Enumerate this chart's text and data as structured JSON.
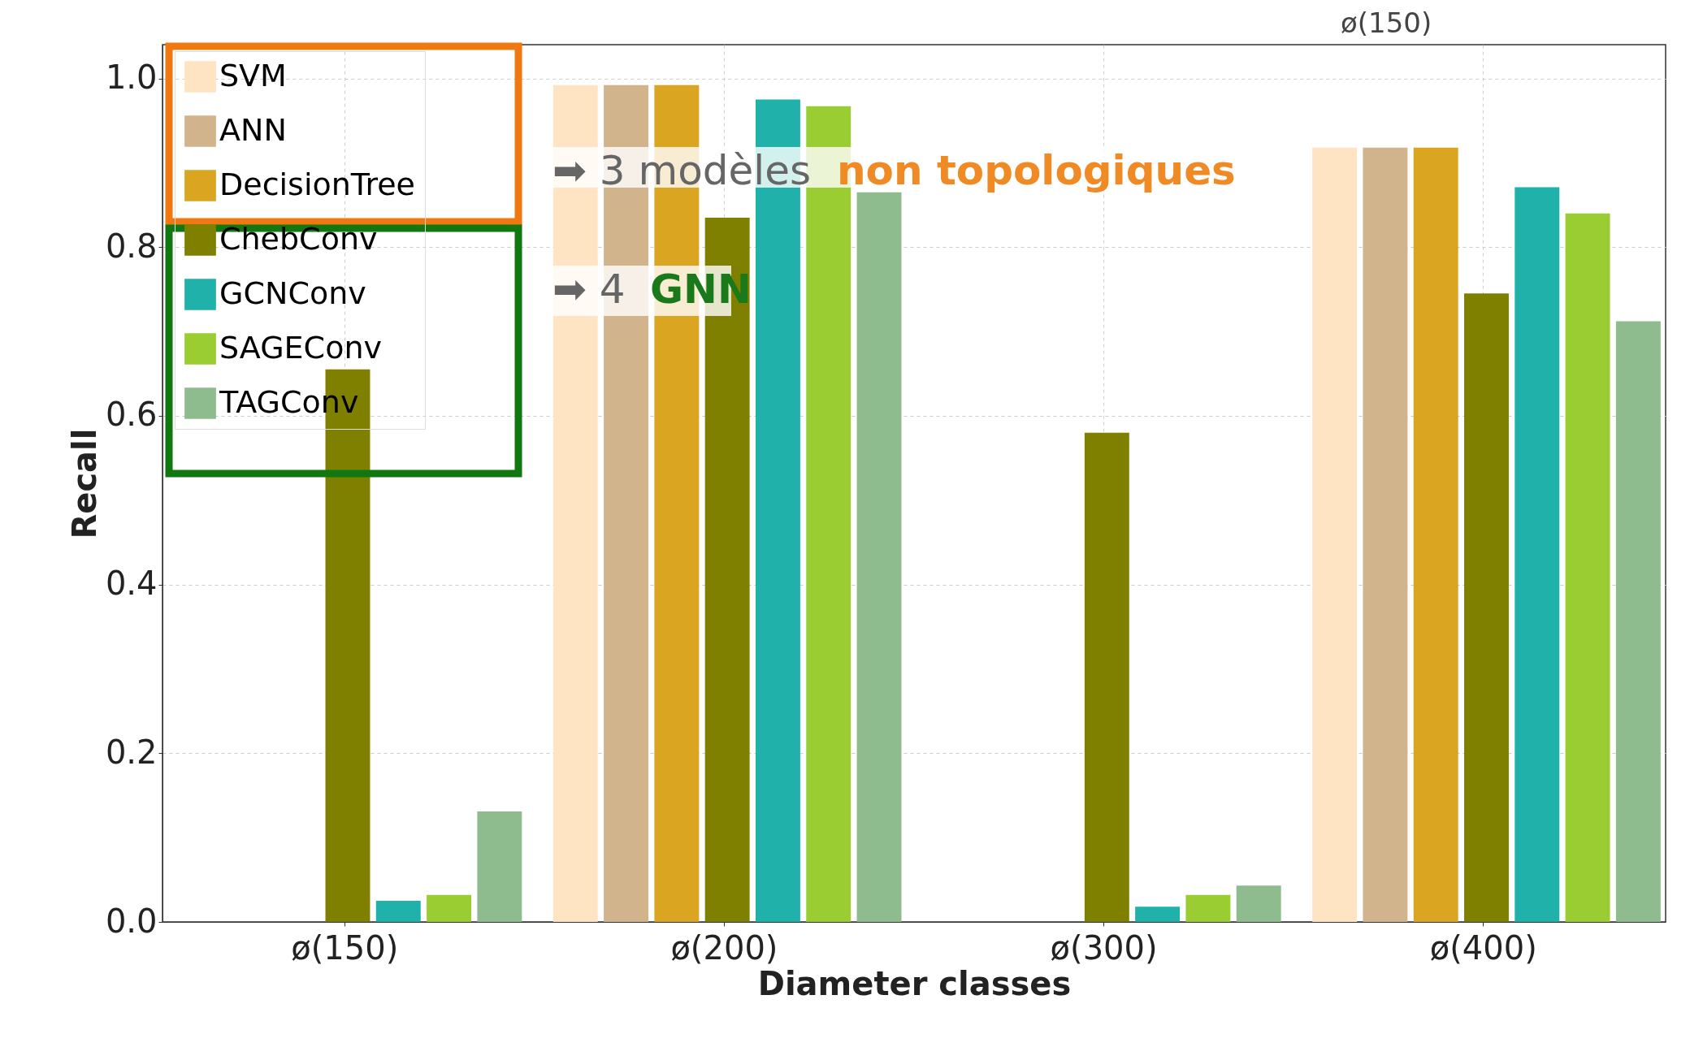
{
  "chart_data": {
    "type": "bar",
    "xlabel": "Diameter classes",
    "ylabel": "Recall",
    "categories": [
      "ø(150)",
      "ø(200)",
      "ø(300)",
      "ø(400)"
    ],
    "series": [
      {
        "name": "SVM",
        "color": "#ffe4c4",
        "values": [
          0,
          0.992,
          0,
          0.918
        ]
      },
      {
        "name": "ANN",
        "color": "#d2b48c",
        "values": [
          0,
          0.992,
          0,
          0.918
        ]
      },
      {
        "name": "DecisionTree",
        "color": "#daa520",
        "values": [
          0,
          0.992,
          0,
          0.918
        ]
      },
      {
        "name": "ChebConv",
        "color": "#808000",
        "values": [
          0.655,
          0.835,
          0.58,
          0.745
        ]
      },
      {
        "name": "GCNConv",
        "color": "#20b2aa",
        "values": [
          0.025,
          0.975,
          0.018,
          0.871
        ]
      },
      {
        "name": "SAGEConv",
        "color": "#9acd32",
        "values": [
          0.032,
          0.967,
          0.032,
          0.84
        ]
      },
      {
        "name": "TAGConv",
        "color": "#8fbc8f",
        "values": [
          0.131,
          0.865,
          0.043,
          0.712
        ]
      }
    ],
    "ylim": [
      0,
      1.04
    ],
    "yticks": [
      {
        "value": 0,
        "label": "0.0"
      },
      0.2,
      0.4,
      0.6,
      0.8,
      {
        "value": 1,
        "label": "1.0"
      }
    ],
    "grid": true,
    "legend": "top left",
    "annotations": [
      "➡ 3 modèles",
      "non topologiques",
      "➡ 4",
      "GNN",
      "ø(150)"
    ]
  }
}
